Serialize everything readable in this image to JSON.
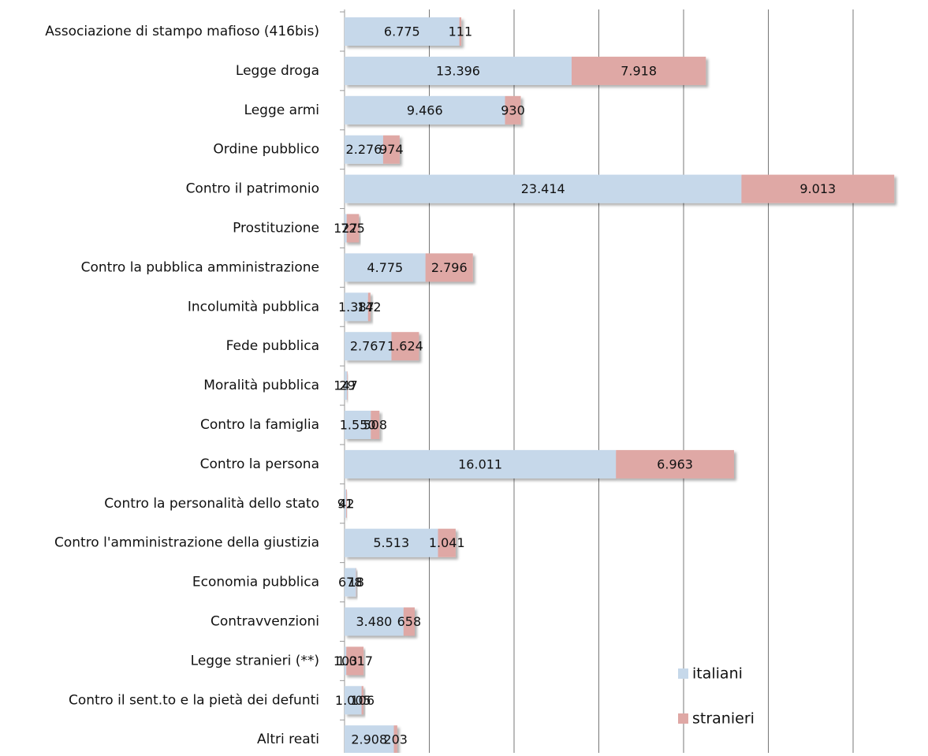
{
  "chart_data": {
    "type": "stacked-barh",
    "categories": [
      "Associazione di stampo mafioso (416bis)",
      "Legge droga",
      "Legge armi",
      "Ordine pubblico",
      "Contro il patrimonio",
      "Prostituzione",
      "Contro la pubblica amministrazione",
      "Incolumità pubblica",
      "Fede pubblica",
      "Moralità pubblica",
      "Contro la famiglia",
      "Contro la persona",
      "Contro la personalità dello stato",
      "Contro l'amministrazione della giustizia",
      "Economia pubblica",
      "Contravvenzioni",
      "Legge stranieri (**)",
      "Contro il sent.to e la pietà dei defunti",
      "Altri reati"
    ],
    "series": [
      {
        "name": "italiani",
        "color": "#c6d8ea",
        "values": [
          6775,
          13396,
          9466,
          2276,
          23414,
          127,
          4775,
          1387,
          2767,
          147,
          1550,
          16011,
          91,
          5513,
          678,
          3480,
          103,
          1005,
          2908
        ],
        "value_labels": [
          "6.775",
          "13.396",
          "9.466",
          "2.276",
          "23.414",
          "127",
          "4.775",
          "1.387",
          "2.767",
          "147",
          "1.550",
          "16.011",
          "91",
          "5.513",
          "678",
          "3.480",
          "103",
          "1.005",
          "2.908"
        ]
      },
      {
        "name": "stranieri",
        "color": "#dfa8a5",
        "values": [
          111,
          7918,
          930,
          974,
          9013,
          725,
          2796,
          142,
          1624,
          29,
          508,
          6963,
          42,
          1041,
          18,
          658,
          1017,
          106,
          203
        ],
        "value_labels": [
          "111",
          "7.918",
          "930",
          "974",
          "9.013",
          "725",
          "2.796",
          "142",
          "1.624",
          "29",
          "508",
          "6.963",
          "42",
          "1.041",
          "18",
          "658",
          "1.017",
          "106",
          "203"
        ]
      }
    ],
    "xlim": [
      0,
      34000
    ],
    "xticks": [
      0,
      5000,
      10000,
      15000,
      20000,
      25000,
      30000
    ],
    "grid": true,
    "legend": "lower right"
  }
}
